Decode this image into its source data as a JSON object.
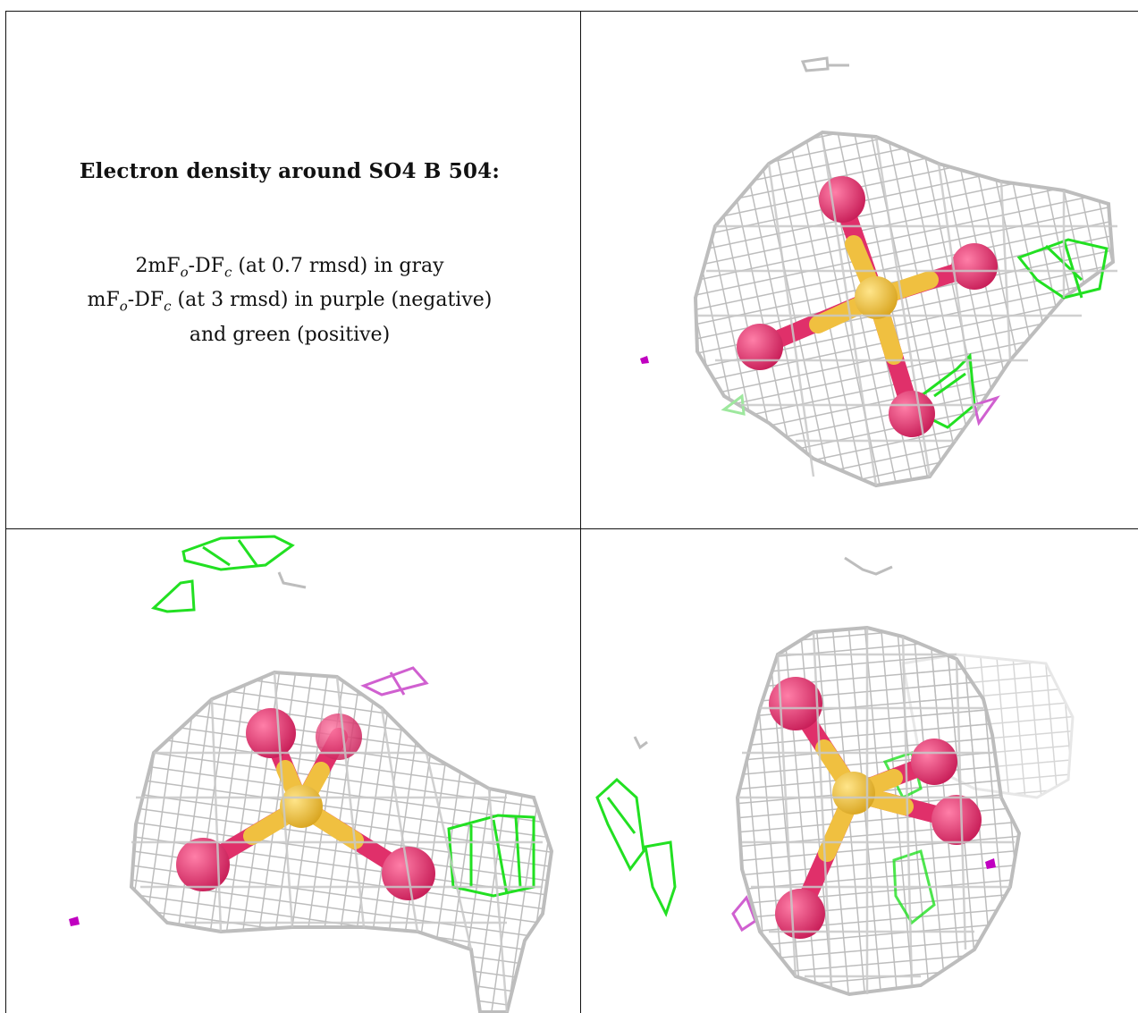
{
  "caption": {
    "title": "Electron density around SO4 B 504:",
    "line1_a": "2mF",
    "line1_sub1": "o",
    "line1_b": "-DF",
    "line1_sub2": "c",
    "line1_c": " (at 0.7 rmsd) in gray",
    "line2_a": "mF",
    "line2_sub1": "o",
    "line2_b": "-DF",
    "line2_sub2": "c",
    "line2_c": " (at 3 rmsd) in purple (negative)",
    "line3": "and green (positive)"
  },
  "colors": {
    "mesh_gray": "#bdbdbd",
    "positive_green": "#22e022",
    "negative_purple": "#d060d0",
    "oxygen": "#e0306a",
    "sulfur": "#f0c040",
    "border": "#111111"
  },
  "panels": [
    {
      "name": "view-top-right"
    },
    {
      "name": "view-bottom-left"
    },
    {
      "name": "view-bottom-right"
    }
  ]
}
